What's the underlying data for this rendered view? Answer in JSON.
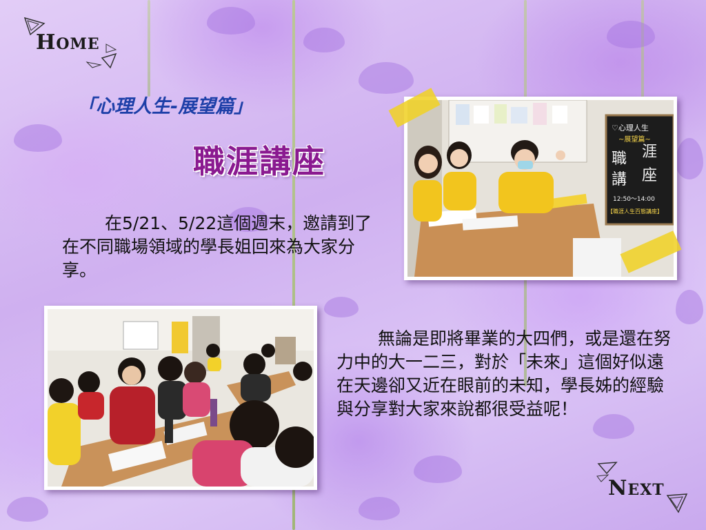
{
  "nav": {
    "home_label_first": "H",
    "home_label_rest": "OME",
    "next_label_first": "N",
    "next_label_rest": "EXT"
  },
  "header": {
    "subtitle": "「心理人生-展望篇」",
    "title": "職涯講座"
  },
  "content": {
    "paragraph1": "在5/21、5/22這個週末，邀請到了在不同職場領域的學長姐回來為大家分享。",
    "paragraph2": "無論是即將畢業的大四們，或是還在努力中的大一二三，對於「未來」這個好似遠在天邊卻又近在眼前的未知，學長姊的經驗與分享對大家來說都很受益呢！"
  },
  "photo1": {
    "board_lines": [
      "♡心理人生",
      "~展望篇~",
      "職",
      "涯",
      "講",
      "座",
      "12:50～14:00",
      "【職涯人生百態講座】"
    ]
  },
  "colors": {
    "title": "#8a1a90",
    "subtitle": "#1d3fa8",
    "tape": "#f0d228",
    "background": "#d6bff4"
  }
}
